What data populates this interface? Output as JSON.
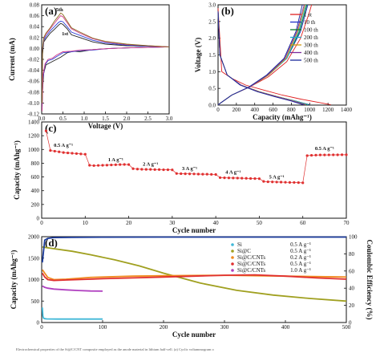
{
  "caption": "Electrochemical properties of the Si@C/CNT composite employed as the anode material in lithium half-cell. (a) Cyclic voltammogram o",
  "chart_data": [
    {
      "panel": "(a)",
      "type": "line",
      "xlabel": "Voltage (V)",
      "ylabel": "Current (mA)",
      "xlim": [
        0.0,
        3.0
      ],
      "ylim": [
        -0.12,
        0.08
      ],
      "xticks": [
        "0.0",
        "0.5",
        "1.0",
        "1.5",
        "2.0",
        "2.5",
        "3.0"
      ],
      "yticks": [
        "-0.12",
        "-0.10",
        "-0.08",
        "-0.06",
        "-0.04",
        "-0.02",
        "0.00",
        "0.02",
        "0.04",
        "0.06",
        "0.08"
      ],
      "annotations": [
        "5th",
        "1st"
      ],
      "series": [
        {
          "color": "#222222",
          "x": [
            0.01,
            0.02,
            0.05,
            0.1,
            0.2,
            0.3,
            0.4,
            0.45,
            0.5,
            0.6,
            0.7,
            0.9,
            1.2,
            1.5,
            2.0,
            2.5,
            3.0,
            2.5,
            2.0,
            1.6,
            1.2,
            0.9,
            0.75,
            0.6,
            0.45,
            0.3,
            0.2,
            0.1,
            0.05,
            0.02,
            0.01
          ],
          "y": [
            -0.09,
            -0.01,
            0.012,
            0.018,
            0.028,
            0.035,
            0.043,
            0.046,
            0.044,
            0.036,
            0.025,
            0.02,
            0.012,
            0.008,
            0.005,
            0.004,
            0.003,
            0.002,
            0.001,
            0.0,
            -0.002,
            -0.006,
            -0.005,
            -0.008,
            -0.016,
            -0.022,
            -0.026,
            -0.03,
            -0.045,
            -0.075,
            -0.1
          ]
        },
        {
          "color": "#2b3fd6",
          "x": [
            0.01,
            0.02,
            0.05,
            0.1,
            0.2,
            0.3,
            0.4,
            0.45,
            0.5,
            0.6,
            0.7,
            0.9,
            1.2,
            1.5,
            2.0,
            2.5,
            3.0,
            2.5,
            2.0,
            1.6,
            1.2,
            0.9,
            0.7,
            0.5,
            0.35,
            0.25,
            0.15,
            0.08,
            0.03,
            0.01
          ],
          "y": [
            -0.1,
            -0.005,
            0.015,
            0.022,
            0.032,
            0.04,
            0.048,
            0.05,
            0.049,
            0.04,
            0.03,
            0.024,
            0.015,
            0.01,
            0.006,
            0.004,
            0.003,
            0.002,
            0.001,
            0.0,
            -0.003,
            -0.004,
            -0.006,
            -0.008,
            -0.015,
            -0.02,
            -0.022,
            -0.03,
            -0.055,
            -0.11
          ]
        },
        {
          "color": "#d13c8a",
          "x": [
            0.01,
            0.02,
            0.05,
            0.1,
            0.2,
            0.3,
            0.4,
            0.45,
            0.5,
            0.6,
            0.7,
            0.9,
            1.2,
            1.5,
            2.0,
            2.5,
            3.0,
            2.5,
            2.0,
            1.6,
            1.2,
            0.9,
            0.7,
            0.5,
            0.35,
            0.25,
            0.15,
            0.08,
            0.03,
            0.01
          ],
          "y": [
            -0.1,
            0.0,
            0.018,
            0.026,
            0.036,
            0.046,
            0.056,
            0.06,
            0.058,
            0.047,
            0.036,
            0.028,
            0.018,
            0.012,
            0.007,
            0.005,
            0.003,
            0.002,
            0.001,
            0.0,
            -0.002,
            -0.003,
            -0.005,
            -0.006,
            -0.012,
            -0.018,
            -0.02,
            -0.028,
            -0.05,
            -0.115
          ]
        },
        {
          "color": "#8a6a1c",
          "x": [
            0.01,
            0.02,
            0.05,
            0.1,
            0.2,
            0.3,
            0.4,
            0.45,
            0.5,
            0.6,
            0.7,
            0.9,
            1.2,
            1.5,
            2.0,
            2.5,
            3.0
          ],
          "y": [
            -0.1,
            0.0,
            0.02,
            0.028,
            0.038,
            0.05,
            0.06,
            0.065,
            0.062,
            0.05,
            0.038,
            0.03,
            0.019,
            0.013,
            0.008,
            0.005,
            0.003
          ]
        }
      ]
    },
    {
      "panel": "(b)",
      "type": "line",
      "xlabel": "Capacity (mAhg⁻¹)",
      "ylabel": "Voltage (V)",
      "xlim": [
        0,
        1400
      ],
      "ylim": [
        0.0,
        3.0
      ],
      "xticks": [
        "0",
        "200",
        "400",
        "600",
        "800",
        "1000",
        "1200",
        "1400"
      ],
      "yticks": [
        "0.0",
        "0.5",
        "1.0",
        "1.5",
        "2.0",
        "2.5",
        "3.0"
      ],
      "legend_position": "right",
      "series": [
        {
          "name": "1 st",
          "color": "#e02020",
          "discharge_x": [
            0,
            40,
            150,
            300,
            500,
            700,
            900,
            1100,
            1230
          ],
          "discharge_y": [
            2.9,
            1.0,
            0.8,
            0.6,
            0.45,
            0.3,
            0.18,
            0.08,
            0.01
          ],
          "charge_x": [
            0,
            150,
            350,
            550,
            750,
            900,
            1000,
            1020
          ],
          "charge_y": [
            0.01,
            0.3,
            0.55,
            0.85,
            1.3,
            2.0,
            2.8,
            3.0
          ]
        },
        {
          "name": "10 th",
          "color": "#2030c8",
          "discharge_x": [
            0,
            20,
            100,
            250,
            450,
            650,
            850,
            1000
          ],
          "discharge_y": [
            2.8,
            1.5,
            0.9,
            0.6,
            0.4,
            0.25,
            0.12,
            0.01
          ],
          "charge_x": [
            0,
            150,
            350,
            550,
            750,
            900,
            980
          ],
          "charge_y": [
            0.01,
            0.3,
            0.55,
            0.9,
            1.4,
            2.2,
            3.0
          ]
        },
        {
          "name": "100 th",
          "color": "#0a7a2a",
          "discharge_x": [
            0,
            20,
            100,
            250,
            450,
            650,
            850,
            990
          ],
          "discharge_y": [
            2.8,
            1.5,
            0.9,
            0.6,
            0.4,
            0.25,
            0.12,
            0.01
          ],
          "charge_x": [
            0,
            150,
            350,
            550,
            750,
            890,
            970
          ],
          "charge_y": [
            0.01,
            0.3,
            0.55,
            0.9,
            1.4,
            2.2,
            3.0
          ]
        },
        {
          "name": "200 th",
          "color": "#1fa8c8",
          "discharge_x": [
            0,
            20,
            100,
            250,
            450,
            650,
            850,
            980
          ],
          "discharge_y": [
            2.8,
            1.5,
            0.9,
            0.6,
            0.4,
            0.25,
            0.12,
            0.01
          ],
          "charge_x": [
            0,
            150,
            350,
            550,
            750,
            880,
            960
          ],
          "charge_y": [
            0.01,
            0.3,
            0.55,
            0.9,
            1.4,
            2.2,
            3.0
          ]
        },
        {
          "name": "300 th",
          "color": "#d09a10",
          "discharge_x": [
            0,
            20,
            100,
            250,
            450,
            650,
            830,
            960
          ],
          "discharge_y": [
            2.8,
            1.5,
            0.9,
            0.6,
            0.4,
            0.25,
            0.12,
            0.01
          ],
          "charge_x": [
            0,
            150,
            350,
            550,
            740,
            870,
            950
          ],
          "charge_y": [
            0.01,
            0.3,
            0.55,
            0.9,
            1.4,
            2.2,
            3.0
          ]
        },
        {
          "name": "400 th",
          "color": "#7a2a9a",
          "discharge_x": [
            0,
            20,
            100,
            250,
            440,
            640,
            820,
            950
          ],
          "discharge_y": [
            2.8,
            1.5,
            0.9,
            0.6,
            0.4,
            0.25,
            0.12,
            0.01
          ],
          "charge_x": [
            0,
            150,
            350,
            540,
            730,
            860,
            940
          ],
          "charge_y": [
            0.01,
            0.3,
            0.55,
            0.9,
            1.4,
            2.2,
            3.0
          ]
        },
        {
          "name": "500 th",
          "color": "#1a2a9a",
          "discharge_x": [
            0,
            20,
            100,
            240,
            430,
            620,
            800,
            930
          ],
          "discharge_y": [
            2.8,
            1.5,
            0.9,
            0.6,
            0.4,
            0.25,
            0.12,
            0.01
          ],
          "charge_x": [
            0,
            150,
            340,
            530,
            720,
            850,
            920
          ],
          "charge_y": [
            0.01,
            0.3,
            0.55,
            0.9,
            1.4,
            2.2,
            3.0
          ]
        }
      ]
    },
    {
      "panel": "(c)",
      "type": "scatter",
      "xlabel": "Cycle number",
      "ylabel": "Capacity (mAhg⁻¹)",
      "xlim": [
        0,
        70
      ],
      "ylim": [
        0,
        1400
      ],
      "xticks": [
        "0",
        "10",
        "20",
        "30",
        "40",
        "50",
        "60",
        "70"
      ],
      "yticks": [
        "0",
        "200",
        "400",
        "600",
        "800",
        "1000",
        "1200",
        "1400"
      ],
      "segments": [
        {
          "label": "0.5 A g⁻¹",
          "x_start": 1,
          "x_end": 10,
          "values": [
            1270,
            985,
            975,
            965,
            955,
            950,
            945,
            940,
            935,
            930
          ]
        },
        {
          "label": "1 A g⁻¹",
          "x_start": 11,
          "x_end": 20,
          "values": [
            770,
            765,
            768,
            770,
            772,
            775,
            778,
            780,
            782,
            780
          ]
        },
        {
          "label": "2 A g⁻¹",
          "x_start": 21,
          "x_end": 30,
          "values": [
            720,
            715,
            712,
            710,
            710,
            708,
            708,
            705,
            705,
            703
          ]
        },
        {
          "label": "3 A g⁻¹",
          "x_start": 31,
          "x_end": 40,
          "values": [
            650,
            648,
            646,
            645,
            644,
            642,
            640,
            640,
            638,
            636
          ]
        },
        {
          "label": "4 A g⁻¹",
          "x_start": 41,
          "x_end": 50,
          "values": [
            590,
            588,
            586,
            585,
            584,
            582,
            580,
            578,
            576,
            575
          ]
        },
        {
          "label": "5 A g⁻¹",
          "x_start": 51,
          "x_end": 60,
          "values": [
            535,
            530,
            528,
            526,
            525,
            523,
            521,
            520,
            518,
            515
          ]
        },
        {
          "label": "0.5 A g⁻¹",
          "x_start": 61,
          "x_end": 70,
          "values": [
            910,
            915,
            918,
            920,
            920,
            921,
            922,
            922,
            923,
            923
          ]
        }
      ],
      "color": "#e03030"
    },
    {
      "panel": "(d)",
      "type": "line",
      "xlabel": "Cycle number",
      "ylabel": "Capacity (mAhg⁻¹)",
      "y2label": "Coulombic Efficiency (%)",
      "xlim": [
        0,
        500
      ],
      "ylim": [
        0,
        2000
      ],
      "y2lim": [
        0,
        100
      ],
      "xticks": [
        "0",
        "100",
        "200",
        "300",
        "400",
        "500"
      ],
      "yticks": [
        "0",
        "500",
        "1000",
        "1500",
        "2000"
      ],
      "y2ticks": [
        "0",
        "20",
        "40",
        "60",
        "80",
        "100"
      ],
      "legend_position": "upper middle",
      "series": [
        {
          "name": "Si",
          "rate": "0.5 A g⁻¹",
          "color": "#40b8d8",
          "x": [
            1,
            2,
            3,
            5,
            8,
            15,
            25,
            40,
            60,
            80,
            100
          ],
          "y": [
            350,
            150,
            100,
            90,
            85,
            82,
            80,
            80,
            80,
            80,
            80
          ]
        },
        {
          "name": "Si@C",
          "rate": "0.5 A g⁻¹",
          "color": "#a0a020",
          "x": [
            1,
            20,
            50,
            80,
            120,
            160,
            200,
            260,
            320,
            380,
            440,
            500
          ],
          "y": [
            1760,
            1720,
            1660,
            1580,
            1460,
            1320,
            1150,
            920,
            750,
            640,
            560,
            500
          ]
        },
        {
          "name": "Si@C/CNTs",
          "rate": "0.2 A g⁻¹",
          "color": "#f08a20",
          "x": [
            1,
            5,
            10,
            20,
            40,
            60,
            80,
            100,
            150,
            200,
            300,
            400,
            500
          ],
          "y": [
            1230,
            1150,
            1050,
            1000,
            1010,
            1030,
            1050,
            1060,
            1080,
            1090,
            1100,
            1080,
            1060
          ]
        },
        {
          "name": "Si@C/CNTs",
          "rate": "0.5 A g⁻¹",
          "color": "#e03030",
          "x": [
            1,
            5,
            10,
            20,
            40,
            60,
            80,
            100,
            150,
            200,
            300,
            350,
            400,
            450,
            500
          ],
          "y": [
            1150,
            1060,
            1000,
            980,
            990,
            1000,
            1010,
            1020,
            1040,
            1060,
            1100,
            1110,
            1080,
            1040,
            1010
          ]
        },
        {
          "name": "Si@C/CNTs",
          "rate": "1.0 A g⁻¹",
          "color": "#b040c0",
          "x": [
            1,
            5,
            10,
            20,
            40,
            60,
            80,
            100
          ],
          "y": [
            850,
            820,
            800,
            780,
            760,
            745,
            735,
            730
          ]
        },
        {
          "name": "Coulombic Efficiency",
          "axis": "y2",
          "color": "#1a3a9a",
          "x": [
            1,
            5,
            10,
            20,
            50,
            100,
            200,
            300,
            400,
            500
          ],
          "y": [
            70,
            96,
            98,
            99,
            99.2,
            99.4,
            99.5,
            99.5,
            99.5,
            99.5
          ]
        }
      ]
    }
  ]
}
